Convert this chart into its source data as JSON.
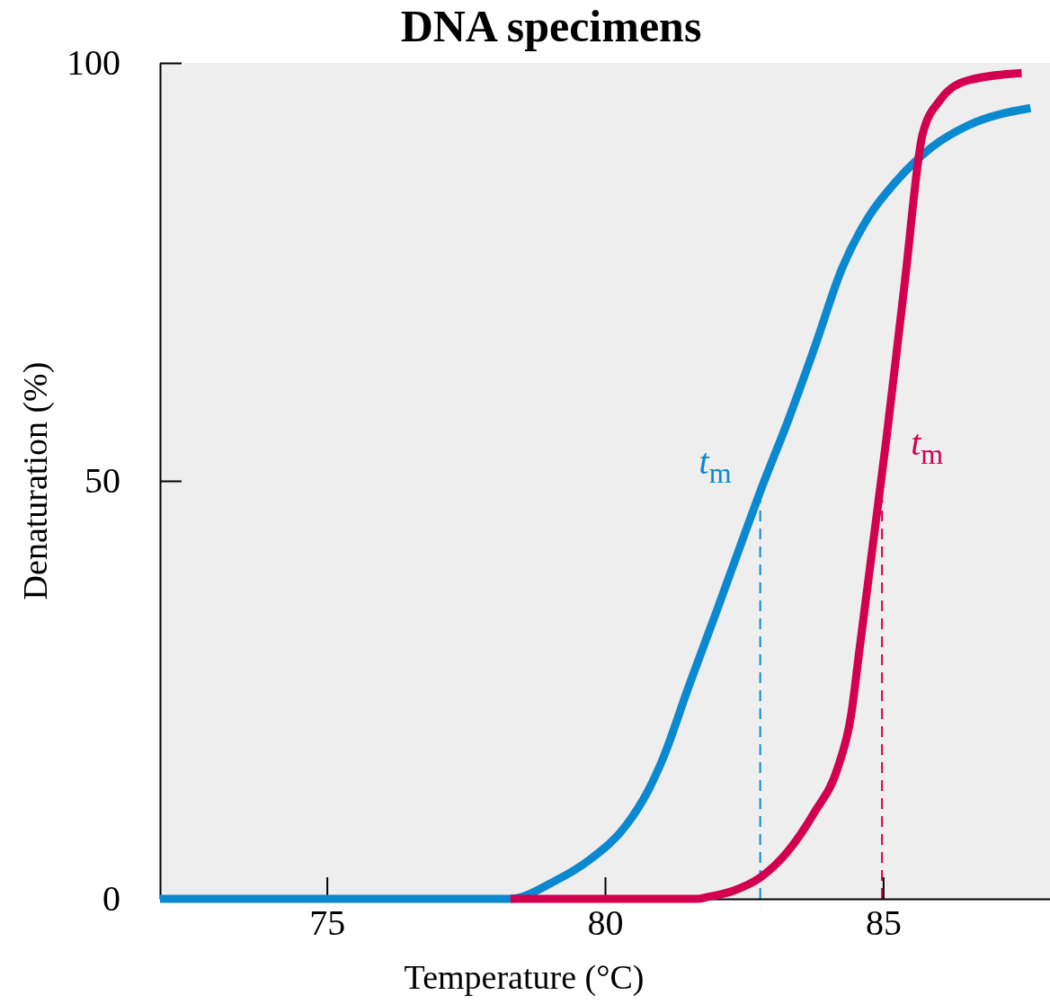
{
  "chart_data": {
    "type": "line",
    "title": "DNA specimens",
    "xlabel": "Temperature (°C)",
    "ylabel": "Denaturation (%)",
    "xlim": [
      72,
      88
    ],
    "xticks": [
      75,
      80,
      85
    ],
    "ylim": [
      0,
      100
    ],
    "yticks": [
      0,
      50,
      100
    ],
    "grid": false,
    "marker": "none",
    "line_style": "solid",
    "series": [
      {
        "color": "#0a88d0",
        "x": [
          72,
          78.28,
          79.09,
          79.73,
          80.38,
          80.78,
          81.03,
          81.51,
          82.0,
          82.48,
          82.8,
          83.29,
          83.77,
          84.26,
          84.74,
          85.23,
          85.87,
          86.52,
          87.65
        ],
        "values": [
          0,
          0,
          2.1,
          4.7,
          8.8,
          13.0,
          16.6,
          25.5,
          34.3,
          43.1,
          48.9,
          57.2,
          66.0,
          75.4,
          81.6,
          85.8,
          89.9,
          92.5,
          94.6
        ]
      },
      {
        "color": "#d3004f",
        "x": [
          78.3,
          81.67,
          81.83,
          82.32,
          82.8,
          83.29,
          83.77,
          84.18,
          84.42,
          84.58,
          84.82,
          85.06,
          85.39,
          85.71,
          86.03,
          86.52,
          87.49
        ],
        "values": [
          0,
          0,
          0.2,
          1.0,
          2.6,
          5.7,
          10.4,
          15.6,
          21.8,
          30.1,
          42.6,
          55.1,
          73.8,
          91.5,
          95.6,
          97.9,
          98.8
        ]
      }
    ],
    "ref_lines": [
      {
        "axis": "x",
        "value": 82.79,
        "color": "#0a88d0",
        "line_style": "dashed"
      },
      {
        "axis": "x",
        "value": 84.98,
        "color": "#d3004f",
        "line_style": "dashed"
      }
    ],
    "annotations": [
      "t$_{m}$",
      "t$_{m}$"
    ]
  }
}
